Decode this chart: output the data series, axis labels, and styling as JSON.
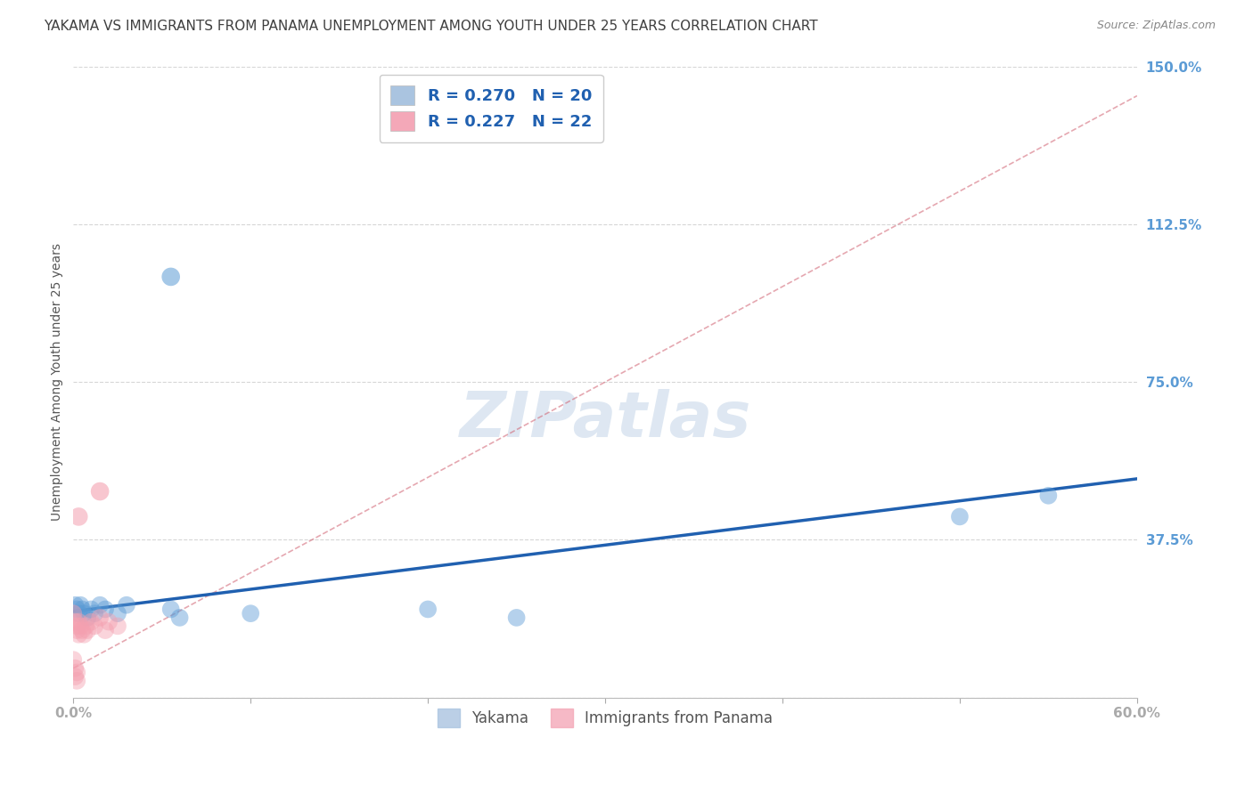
{
  "title": "YAKAMA VS IMMIGRANTS FROM PANAMA UNEMPLOYMENT AMONG YOUTH UNDER 25 YEARS CORRELATION CHART",
  "source": "Source: ZipAtlas.com",
  "ylabel": "Unemployment Among Youth under 25 years",
  "xlim": [
    0.0,
    0.6
  ],
  "ylim": [
    0.0,
    1.5
  ],
  "xticks": [
    0.0,
    0.1,
    0.2,
    0.3,
    0.4,
    0.5,
    0.6
  ],
  "xticklabels": [
    "0.0%",
    "",
    "",
    "",
    "",
    "",
    "60.0%"
  ],
  "yticks": [
    0.0,
    0.375,
    0.75,
    1.125,
    1.5
  ],
  "yticklabels": [
    "",
    "37.5%",
    "75.0%",
    "112.5%",
    "150.0%"
  ],
  "watermark": "ZIPatlas",
  "legend_items": [
    {
      "label": "R = 0.270   N = 20",
      "color": "#aac4e0"
    },
    {
      "label": "R = 0.227   N = 22",
      "color": "#f4a8b8"
    }
  ],
  "yakama_points": [
    [
      0.001,
      0.22
    ],
    [
      0.002,
      0.21
    ],
    [
      0.003,
      0.2
    ],
    [
      0.004,
      0.22
    ],
    [
      0.005,
      0.21
    ],
    [
      0.006,
      0.2
    ],
    [
      0.008,
      0.19
    ],
    [
      0.01,
      0.21
    ],
    [
      0.012,
      0.2
    ],
    [
      0.015,
      0.22
    ],
    [
      0.018,
      0.21
    ],
    [
      0.025,
      0.2
    ],
    [
      0.03,
      0.22
    ],
    [
      0.055,
      0.21
    ],
    [
      0.06,
      0.19
    ],
    [
      0.1,
      0.2
    ],
    [
      0.2,
      0.21
    ],
    [
      0.25,
      0.19
    ],
    [
      0.5,
      0.43
    ],
    [
      0.55,
      0.48
    ]
  ],
  "yakama_outlier": [
    0.055,
    1.0
  ],
  "panama_points": [
    [
      0.0,
      0.2
    ],
    [
      0.001,
      0.18
    ],
    [
      0.002,
      0.17
    ],
    [
      0.002,
      0.16
    ],
    [
      0.003,
      0.18
    ],
    [
      0.003,
      0.15
    ],
    [
      0.004,
      0.17
    ],
    [
      0.005,
      0.16
    ],
    [
      0.006,
      0.15
    ],
    [
      0.007,
      0.17
    ],
    [
      0.008,
      0.16
    ],
    [
      0.01,
      0.18
    ],
    [
      0.012,
      0.17
    ],
    [
      0.015,
      0.19
    ],
    [
      0.018,
      0.16
    ],
    [
      0.02,
      0.18
    ],
    [
      0.025,
      0.17
    ],
    [
      0.0,
      0.09
    ],
    [
      0.001,
      0.07
    ],
    [
      0.001,
      0.05
    ],
    [
      0.002,
      0.06
    ],
    [
      0.002,
      0.04
    ]
  ],
  "panama_outlier1": [
    0.015,
    0.49
  ],
  "panama_outlier2": [
    0.003,
    0.43
  ],
  "yakama_line": {
    "x0": 0.0,
    "y0": 0.205,
    "x1": 0.6,
    "y1": 0.52
  },
  "panama_line": {
    "x0": 0.0,
    "y0": 0.07,
    "x1": 0.6,
    "y1": 1.43
  },
  "yakama_color": "#5b9bd5",
  "panama_color": "#f4a0b0",
  "yakama_line_color": "#2060b0",
  "panama_line_color": "#d06070",
  "background_color": "#ffffff",
  "grid_color": "#cccccc",
  "axis_label_color": "#5b9bd5",
  "title_color": "#404040",
  "title_fontsize": 11,
  "ylabel_fontsize": 10,
  "tick_fontsize": 11,
  "source_fontsize": 9,
  "watermark_color": "#c8d8ea",
  "watermark_fontsize": 52
}
